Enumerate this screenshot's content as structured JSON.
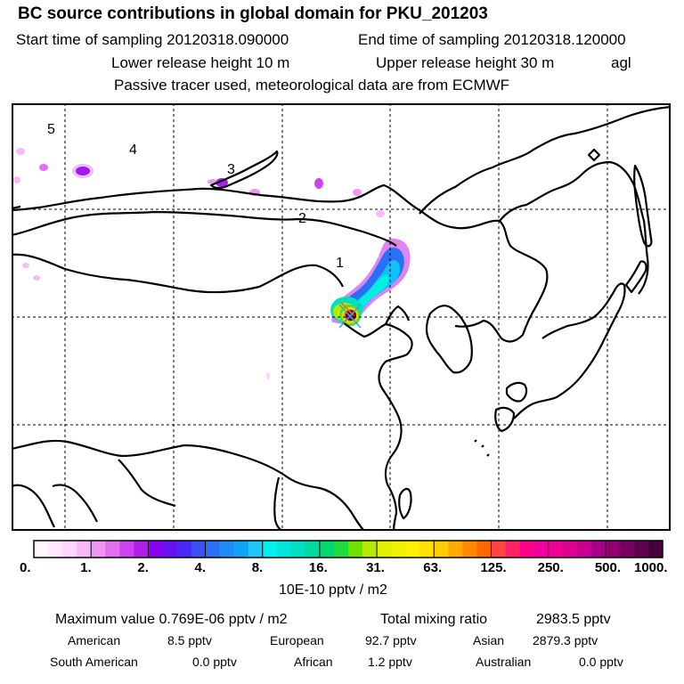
{
  "header": {
    "title": "BC  source contributions in global domain for PKU_201203",
    "start_label": "Start time of sampling 20120318.090000",
    "end_label": "End time of sampling 20120318.120000",
    "lower_label": "Lower release height   10 m",
    "upper_label": "Upper release height   30 m",
    "agl": "agl",
    "tracer_note": "Passive tracer used, meteorological data are from ECMWF"
  },
  "map": {
    "region_labels": [
      "5",
      "4",
      "3",
      "2",
      "1"
    ],
    "receptor_marker": "x-marker-icon",
    "colors": {
      "coast": "#000000",
      "grid": "#000000"
    }
  },
  "colorbar": {
    "tick_labels": [
      "0.",
      "1.",
      "2.",
      "4.",
      "8.",
      "16.",
      "31.",
      "63.",
      "125.",
      "250.",
      "500.",
      "1000."
    ],
    "colors": [
      [
        "#fff8ff",
        "#ffe8ff",
        "#ffd6ff",
        "#f8baf8"
      ],
      [
        "#ee98f4",
        "#e070f0",
        "#cc44ee",
        "#b020ea"
      ],
      [
        "#8a00f0",
        "#6a10f4",
        "#4828f6",
        "#3a50f2"
      ],
      [
        "#2a70f4",
        "#1c8cf6",
        "#10a4f8",
        "#20c4fa"
      ],
      [
        "#00f0f0",
        "#00e8dc",
        "#00e0c0",
        "#00dca0"
      ],
      [
        "#00d870",
        "#20dc38",
        "#70e000",
        "#b8e800"
      ],
      [
        "#e0f000",
        "#f0f000",
        "#fff000",
        "#ffe000"
      ],
      [
        "#ffcc00",
        "#ffaa00",
        "#ff8800",
        "#ff6600"
      ],
      [
        "#ff4444",
        "#ff2266",
        "#ff0088",
        "#f000a0"
      ],
      [
        "#ee0090",
        "#dd0090",
        "#c80090",
        "#a80088"
      ],
      [
        "#900070",
        "#780060",
        "#600050",
        "#480040"
      ]
    ],
    "unit": "10E-10 pptv / m2"
  },
  "stats": {
    "max_value": "Maximum value  0.769E-06 pptv / m2",
    "total_label": "Total mixing ratio",
    "total_value": "2983.5 pptv",
    "regions": [
      {
        "name": "American",
        "value": "8.5 pptv"
      },
      {
        "name": "European",
        "value": "92.7 pptv"
      },
      {
        "name": "Asian",
        "value": "2879.3 pptv"
      },
      {
        "name": "South American",
        "value": "0.0 pptv"
      },
      {
        "name": "African",
        "value": "1.2 pptv"
      },
      {
        "name": "Australian",
        "value": "0.0 pptv"
      }
    ]
  }
}
